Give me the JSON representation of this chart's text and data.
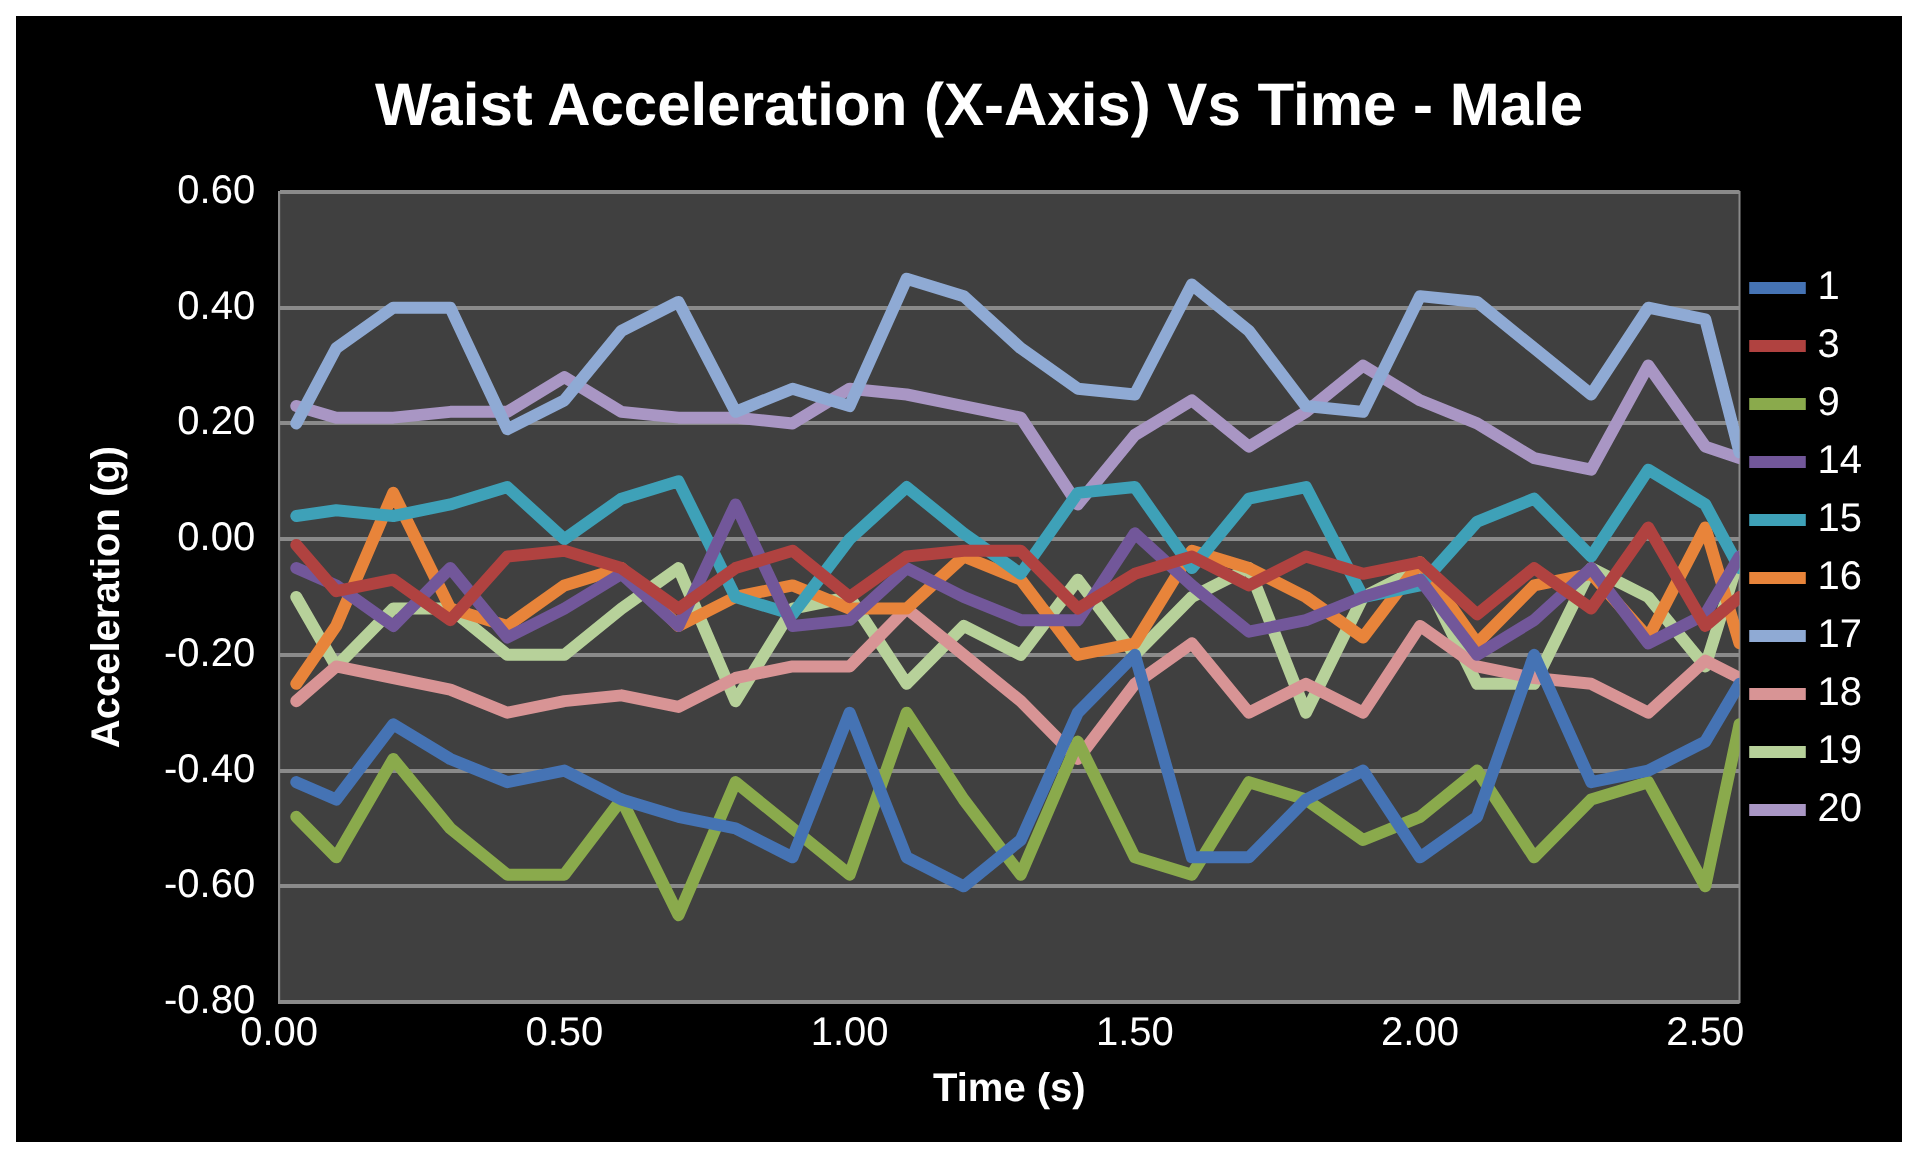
{
  "chart_data": {
    "type": "line",
    "title": "Waist Acceleration (X-Axis) Vs Time - Male",
    "xlabel": "Time (s)",
    "ylabel": "Acceleration (g)",
    "x": [
      0.03,
      0.1,
      0.2,
      0.3,
      0.4,
      0.5,
      0.6,
      0.7,
      0.8,
      0.9,
      1.0,
      1.1,
      1.2,
      1.3,
      1.4,
      1.5,
      1.6,
      1.7,
      1.8,
      1.9,
      2.0,
      2.1,
      2.2,
      2.3,
      2.4,
      2.5,
      2.56
    ],
    "xlim": [
      0,
      2.56
    ],
    "ylim": [
      -0.8,
      0.6
    ],
    "xticks": [
      {
        "value": 0,
        "label": "0.00"
      },
      {
        "value": 0.5,
        "label": "0.50"
      },
      {
        "value": 1,
        "label": "1.00"
      },
      {
        "value": 1.5,
        "label": "1.50"
      },
      {
        "value": 2,
        "label": "2.00"
      },
      {
        "value": 2.5,
        "label": "2.50"
      }
    ],
    "yticks": [
      {
        "value": -0.8,
        "label": "-0.80"
      },
      {
        "value": -0.6,
        "label": "-0.60"
      },
      {
        "value": -0.4,
        "label": "-0.40"
      },
      {
        "value": -0.2,
        "label": "-0.20"
      },
      {
        "value": 0,
        "label": "0.00"
      },
      {
        "value": 0.2,
        "label": "0.20"
      },
      {
        "value": 0.4,
        "label": "0.40"
      },
      {
        "value": 0.6,
        "label": "0.60"
      }
    ],
    "grid": "y",
    "legend": "right",
    "marker": "none",
    "line_style": "solid",
    "series": [
      {
        "name": "1",
        "color": "#4573b4",
        "values": [
          -0.42,
          -0.45,
          -0.32,
          -0.38,
          -0.42,
          -0.4,
          -0.45,
          -0.48,
          -0.5,
          -0.55,
          -0.3,
          -0.55,
          -0.6,
          -0.52,
          -0.3,
          -0.2,
          -0.55,
          -0.55,
          -0.45,
          -0.4,
          -0.55,
          -0.48,
          -0.2,
          -0.42,
          -0.4,
          -0.35,
          -0.25
        ]
      },
      {
        "name": "3",
        "color": "#b04240",
        "values": [
          -0.01,
          -0.09,
          -0.07,
          -0.14,
          -0.03,
          -0.02,
          -0.05,
          -0.12,
          -0.05,
          -0.02,
          -0.1,
          -0.03,
          -0.02,
          -0.02,
          -0.12,
          -0.06,
          -0.03,
          -0.08,
          -0.03,
          -0.06,
          -0.04,
          -0.13,
          -0.05,
          -0.12,
          0.02,
          -0.15,
          -0.1
        ]
      },
      {
        "name": "9",
        "color": "#8aaa4c",
        "values": [
          -0.48,
          -0.55,
          -0.38,
          -0.5,
          -0.58,
          -0.58,
          -0.45,
          -0.65,
          -0.42,
          -0.5,
          -0.58,
          -0.3,
          -0.45,
          -0.58,
          -0.35,
          -0.55,
          -0.58,
          -0.42,
          -0.45,
          -0.52,
          -0.48,
          -0.4,
          -0.55,
          -0.45,
          -0.42,
          -0.6,
          -0.32
        ]
      },
      {
        "name": "14",
        "color": "#72579a",
        "values": [
          -0.05,
          -0.08,
          -0.15,
          -0.05,
          -0.17,
          -0.12,
          -0.06,
          -0.15,
          0.06,
          -0.15,
          -0.14,
          -0.05,
          -0.1,
          -0.14,
          -0.14,
          0.01,
          -0.08,
          -0.16,
          -0.14,
          -0.1,
          -0.07,
          -0.2,
          -0.14,
          -0.05,
          -0.18,
          -0.13,
          -0.03
        ]
      },
      {
        "name": "15",
        "color": "#3ea1b8",
        "values": [
          0.04,
          0.05,
          0.04,
          0.06,
          0.09,
          0.0,
          0.07,
          0.1,
          -0.1,
          -0.13,
          0.0,
          0.09,
          0.01,
          -0.06,
          0.08,
          0.09,
          -0.05,
          0.07,
          0.09,
          -0.1,
          -0.08,
          0.03,
          0.07,
          -0.03,
          0.12,
          0.06,
          -0.05
        ]
      },
      {
        "name": "16",
        "color": "#e8843a",
        "values": [
          -0.25,
          -0.15,
          0.08,
          -0.12,
          -0.15,
          -0.08,
          -0.05,
          -0.15,
          -0.1,
          -0.08,
          -0.12,
          -0.12,
          -0.03,
          -0.07,
          -0.2,
          -0.18,
          -0.02,
          -0.05,
          -0.1,
          -0.17,
          -0.04,
          -0.18,
          -0.08,
          -0.06,
          -0.17,
          0.02,
          -0.18
        ]
      },
      {
        "name": "17",
        "color": "#8faad4",
        "values": [
          0.2,
          0.33,
          0.4,
          0.4,
          0.19,
          0.24,
          0.36,
          0.41,
          0.22,
          0.26,
          0.23,
          0.45,
          0.42,
          0.33,
          0.26,
          0.25,
          0.44,
          0.36,
          0.23,
          0.22,
          0.42,
          0.41,
          0.33,
          0.25,
          0.4,
          0.38,
          0.15
        ]
      },
      {
        "name": "18",
        "color": "#d89495",
        "values": [
          -0.28,
          -0.22,
          -0.24,
          -0.26,
          -0.3,
          -0.28,
          -0.27,
          -0.29,
          -0.24,
          -0.22,
          -0.22,
          -0.12,
          -0.2,
          -0.28,
          -0.38,
          -0.25,
          -0.18,
          -0.3,
          -0.25,
          -0.3,
          -0.15,
          -0.22,
          -0.24,
          -0.25,
          -0.3,
          -0.21,
          -0.24
        ]
      },
      {
        "name": "19",
        "color": "#b7d19a",
        "values": [
          -0.1,
          -0.22,
          -0.12,
          -0.12,
          -0.2,
          -0.2,
          -0.12,
          -0.05,
          -0.28,
          -0.12,
          -0.1,
          -0.25,
          -0.15,
          -0.2,
          -0.07,
          -0.2,
          -0.1,
          -0.05,
          -0.3,
          -0.1,
          -0.05,
          -0.25,
          -0.25,
          -0.05,
          -0.1,
          -0.22,
          -0.03
        ]
      },
      {
        "name": "20",
        "color": "#a996c4",
        "values": [
          0.23,
          0.21,
          0.21,
          0.22,
          0.22,
          0.28,
          0.22,
          0.21,
          0.21,
          0.2,
          0.26,
          0.25,
          0.23,
          0.21,
          0.06,
          0.18,
          0.24,
          0.16,
          0.22,
          0.3,
          0.24,
          0.2,
          0.14,
          0.12,
          0.3,
          0.16,
          0.14
        ]
      }
    ]
  }
}
